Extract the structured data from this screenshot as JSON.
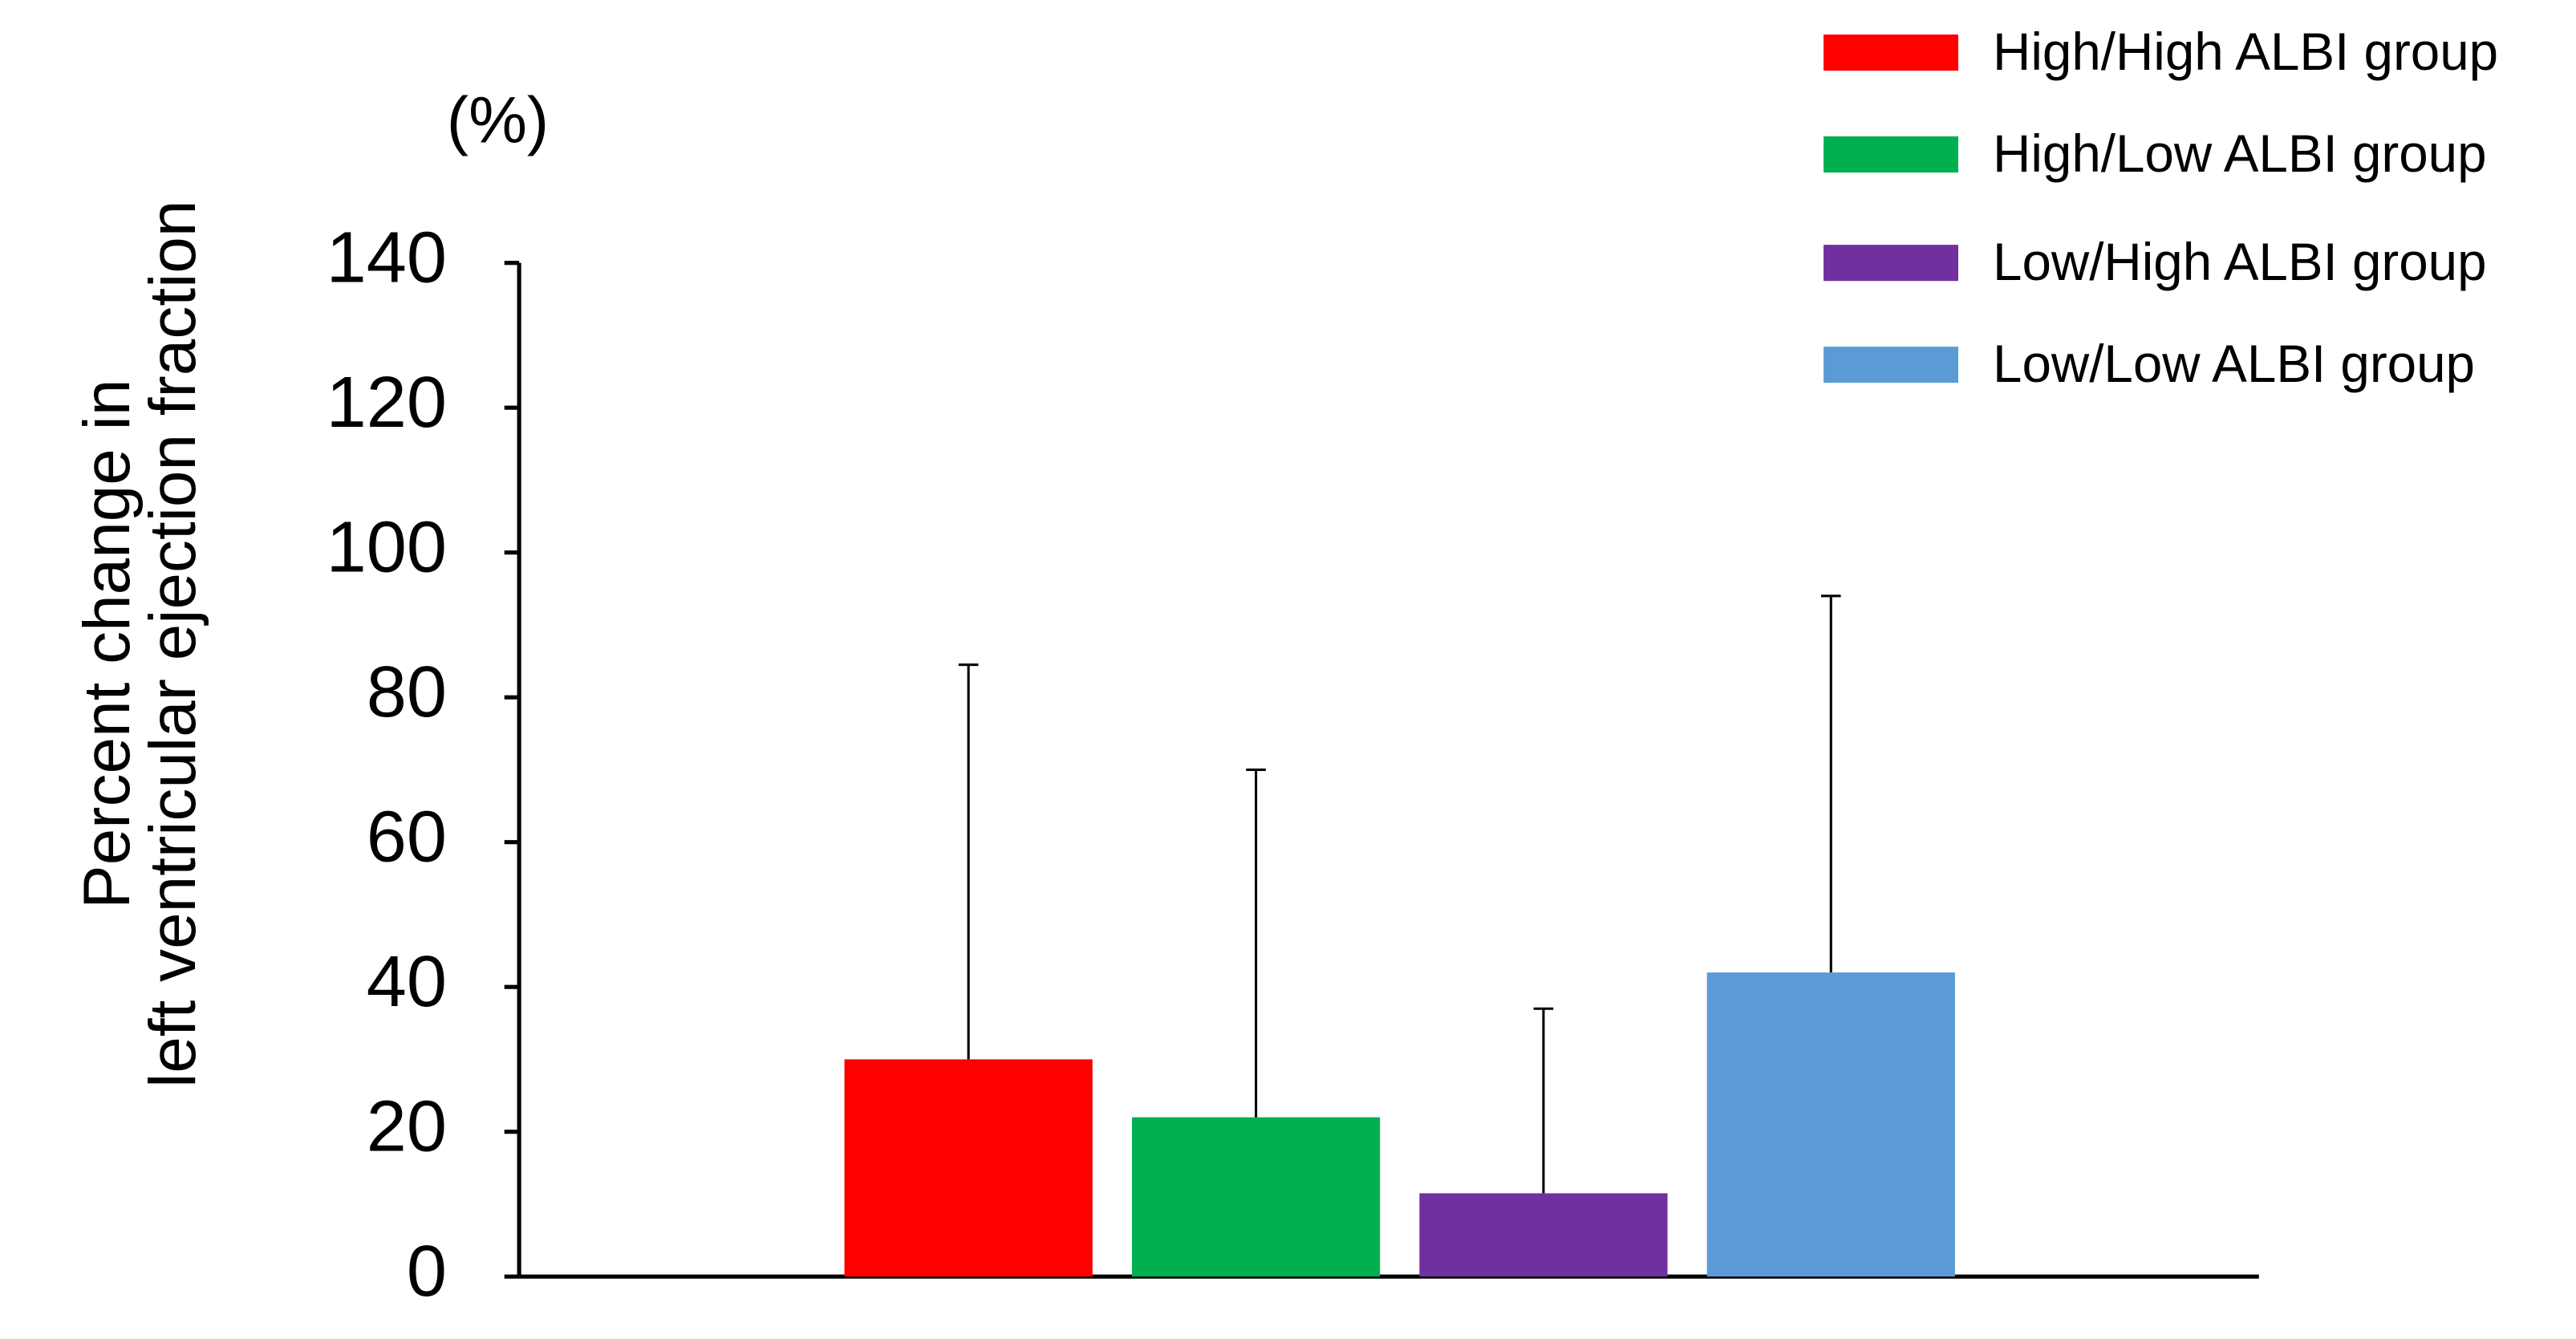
{
  "chart_data": {
    "type": "bar",
    "y_label_lines": [
      "Percent change in",
      "left ventricular ejection fraction"
    ],
    "y_unit": "(%)",
    "categories": [
      null
    ],
    "series": [
      {
        "name": "High/High ALBI group",
        "color": "#ff0000",
        "values": [
          30
        ],
        "errors": [
          54.5
        ]
      },
      {
        "name": "High/Low ALBI group",
        "color": "#00b050",
        "values": [
          22
        ],
        "errors": [
          48
        ]
      },
      {
        "name": "Low/High ALBI group",
        "color": "#7030a0",
        "values": [
          11.5
        ],
        "errors": [
          25.5
        ]
      },
      {
        "name": "Low/Low ALBI group",
        "color": "#5b9bd5",
        "values": [
          42
        ],
        "errors": [
          52
        ]
      }
    ],
    "ylim": [
      0,
      140
    ],
    "yticks": [
      0,
      20,
      40,
      60,
      80,
      100,
      120,
      140
    ],
    "grid": false,
    "legend": "top-right"
  }
}
